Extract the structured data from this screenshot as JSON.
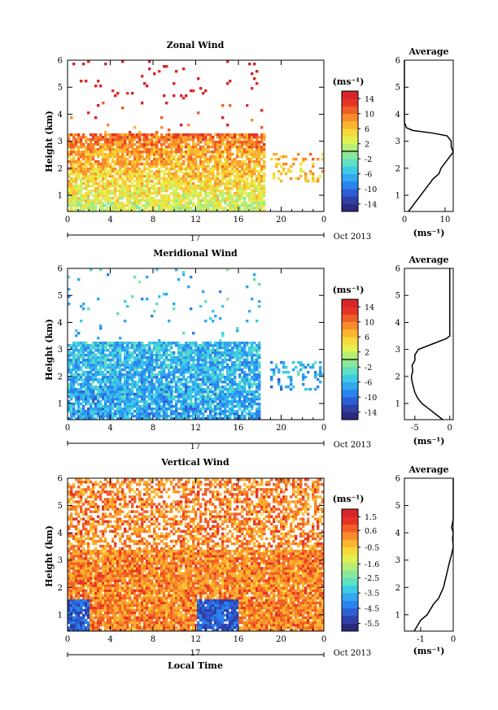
{
  "chart_data": [
    {
      "type": "heatmap",
      "title": "Zonal Wind",
      "ylabel": "Height (km)",
      "xlabel": "",
      "x_ticks": [
        "0",
        "4",
        "8",
        "12",
        "16",
        "20",
        "0"
      ],
      "x_range": [
        0,
        24
      ],
      "y_ticks": [
        "1",
        "2",
        "3",
        "4",
        "5",
        "6"
      ],
      "y_range": [
        0.4,
        6
      ],
      "date_label": "17",
      "month_label": "Oct 2013",
      "colorbar": {
        "unit": "(ms⁻¹)",
        "ticks": [
          "14",
          "10",
          "6",
          "2",
          "-2",
          "-6",
          "-10",
          "-14"
        ],
        "range": [
          -16,
          16
        ]
      },
      "field": {
        "max_height_km": 3.3,
        "base_value": 4,
        "gradient": 3.0,
        "range_end_hour": 18.5,
        "sparse_after_hour": 19.0
      },
      "profile": {
        "title": "Average",
        "xlabel": "(ms⁻¹)",
        "x_ticks": [
          "0",
          "10"
        ],
        "x_range": [
          0,
          12
        ],
        "heights": [
          0.4,
          0.6,
          0.8,
          1.0,
          1.2,
          1.4,
          1.6,
          1.8,
          2.0,
          2.2,
          2.4,
          2.6,
          2.8,
          3.0,
          3.2,
          3.3,
          3.4,
          3.5,
          3.7,
          4.0,
          4.5,
          5.0,
          5.5,
          6.0
        ],
        "values": [
          1.0,
          2.0,
          3.0,
          4.0,
          5.0,
          6.0,
          7.0,
          8.5,
          9.0,
          10.0,
          11.0,
          12.0,
          11.5,
          11.5,
          10.5,
          7.0,
          2.0,
          0.5,
          0.0,
          0.0,
          0.0,
          0.0,
          0.0,
          0.0
        ]
      }
    },
    {
      "type": "heatmap",
      "title": "Meridional Wind",
      "ylabel": "Height (km)",
      "xlabel": "",
      "x_ticks": [
        "0",
        "4",
        "8",
        "12",
        "16",
        "20",
        "0"
      ],
      "x_range": [
        0,
        24
      ],
      "y_ticks": [
        "1",
        "2",
        "3",
        "4",
        "5",
        "6"
      ],
      "y_range": [
        0.4,
        6
      ],
      "date_label": "17",
      "month_label": "Oct 2013",
      "colorbar": {
        "unit": "(ms⁻¹)",
        "ticks": [
          "14",
          "10",
          "6",
          "2",
          "-2",
          "-6",
          "-10",
          "-14"
        ],
        "range": [
          -16,
          16
        ]
      },
      "field": {
        "max_height_km": 3.3,
        "base_value": -7,
        "gradient": 0.5,
        "range_end_hour": 18.0,
        "sparse_after_hour": 19.0
      },
      "profile": {
        "title": "Average",
        "xlabel": "(ms⁻¹)",
        "x_ticks": [
          "-5",
          "0"
        ],
        "x_range": [
          -6.5,
          0.5
        ],
        "heights": [
          0.4,
          0.6,
          0.8,
          1.0,
          1.2,
          1.4,
          1.6,
          1.8,
          2.0,
          2.2,
          2.4,
          2.6,
          2.8,
          3.0,
          3.2,
          3.4,
          3.5,
          3.7,
          4.0,
          4.5,
          5.0,
          5.5,
          6.0
        ],
        "values": [
          -1.0,
          -2.0,
          -3.0,
          -4.0,
          -4.6,
          -5.0,
          -5.2,
          -5.4,
          -5.5,
          -5.3,
          -5.4,
          -5.0,
          -5.0,
          -4.5,
          -2.5,
          -0.5,
          0.0,
          0.0,
          0.0,
          0.0,
          0.0,
          0.0,
          0.0
        ]
      }
    },
    {
      "type": "heatmap",
      "title": "Vertical Wind",
      "ylabel": "Height (km)",
      "xlabel": "Local Time",
      "x_ticks": [
        "0",
        "4",
        "8",
        "12",
        "16",
        "20",
        "0"
      ],
      "x_range": [
        0,
        24
      ],
      "y_ticks": [
        "1",
        "2",
        "3",
        "4",
        "5",
        "6"
      ],
      "y_range": [
        0.4,
        6
      ],
      "date_label": "17",
      "month_label": "Oct 2013",
      "colorbar": {
        "unit": "(ms⁻¹)",
        "ticks": [
          "1.5",
          "0.6",
          "-0.5",
          "-1.6",
          "-2.5",
          "-3.5",
          "-4.5",
          "-5.5"
        ],
        "range": [
          -6,
          2
        ]
      },
      "field": {
        "max_height_km": 6.0,
        "base_value": 0.3,
        "gradient": 0.0,
        "range_end_hour": 24.0,
        "sparse_after_hour": 25.0
      },
      "profile": {
        "title": "Average",
        "xlabel": "(ms⁻¹)",
        "x_ticks": [
          "-1",
          "0"
        ],
        "x_range": [
          -1.5,
          0
        ],
        "heights": [
          0.4,
          0.6,
          0.8,
          1.0,
          1.2,
          1.4,
          1.6,
          2.0,
          2.5,
          3.0,
          3.2,
          3.5,
          3.8,
          4.0,
          4.2,
          4.5,
          5.0,
          5.5,
          6.0
        ],
        "values": [
          -1.2,
          -1.1,
          -1.0,
          -0.8,
          -0.7,
          -0.6,
          -0.45,
          -0.3,
          -0.2,
          -0.1,
          -0.05,
          0.0,
          -0.02,
          0.0,
          -0.05,
          0.0,
          0.0,
          0.0,
          0.0
        ]
      }
    }
  ]
}
